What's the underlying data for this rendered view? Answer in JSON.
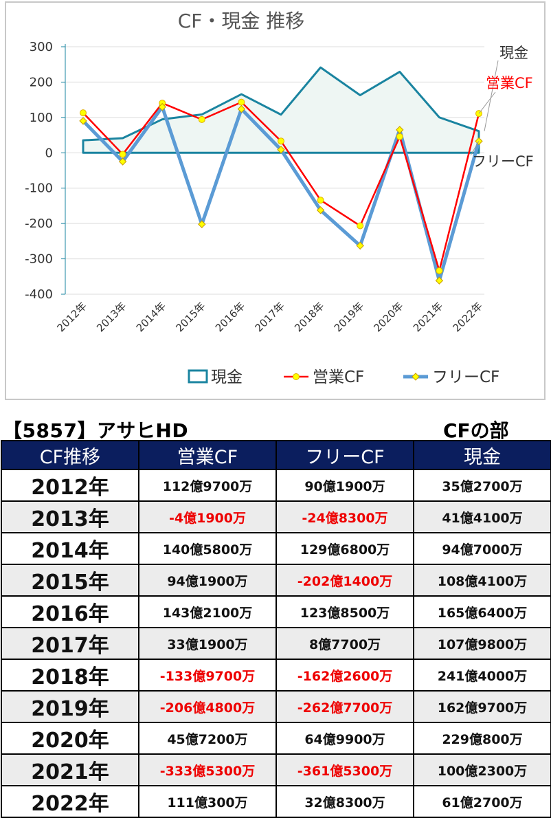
{
  "chart_data": {
    "type": "line",
    "title": "CF・現金 推移",
    "categories": [
      "2012年",
      "2013年",
      "2014年",
      "2015年",
      "2016年",
      "2017年",
      "2018年",
      "2019年",
      "2020年",
      "2021年",
      "2022年"
    ],
    "ylim": [
      -400,
      300
    ],
    "yticks": [
      300,
      200,
      100,
      0,
      -100,
      -200,
      -300,
      -400
    ],
    "grid": true,
    "legend_position": "bottom",
    "series": [
      {
        "name": "現金",
        "type": "area",
        "color": "#1a84a0",
        "values": [
          35.27,
          41.41,
          94.7,
          108.41,
          165.64,
          107.98,
          241.4,
          162.97,
          229.08,
          100.23,
          61.27
        ]
      },
      {
        "name": "営業CF",
        "type": "line",
        "color": "#ff0000",
        "marker": "circle",
        "marker_color": "#ffff00",
        "values": [
          112.97,
          -4.19,
          140.58,
          94.19,
          143.21,
          33.19,
          -133.97,
          -206.48,
          45.72,
          -333.53,
          111.03
        ]
      },
      {
        "name": "フリーCF",
        "type": "line",
        "color": "#5b9bd5",
        "marker": "diamond",
        "marker_color": "#ffff00",
        "values": [
          90.19,
          -24.83,
          129.68,
          -202.14,
          123.85,
          8.77,
          -162.26,
          -262.77,
          64.99,
          -361.53,
          32.83
        ]
      }
    ],
    "end_labels": [
      "現金",
      "営業CF",
      "フリーCF"
    ]
  },
  "company_title": "【5857】アサヒHD",
  "section_title": "CFの部",
  "table": {
    "headers": [
      "CF推移",
      "営業CF",
      "フリーCF",
      "現金"
    ],
    "rows": [
      [
        "2012年",
        "112億9700万",
        "90億1900万",
        "35億2700万"
      ],
      [
        "2013年",
        "-4億1900万",
        "-24億8300万",
        "41億4100万"
      ],
      [
        "2014年",
        "140億5800万",
        "129億6800万",
        "94億7000万"
      ],
      [
        "2015年",
        "94億1900万",
        "-202億1400万",
        "108億4100万"
      ],
      [
        "2016年",
        "143億2100万",
        "123億8500万",
        "165億6400万"
      ],
      [
        "2017年",
        "33億1900万",
        "8億7700万",
        "107億9800万"
      ],
      [
        "2018年",
        "-133億9700万",
        "-162億2600万",
        "241億4000万"
      ],
      [
        "2019年",
        "-206億4800万",
        "-262億7700万",
        "162億9700万"
      ],
      [
        "2020年",
        "45億7200万",
        "64億9900万",
        "229億800万"
      ],
      [
        "2021年",
        "-333億5300万",
        "-361億5300万",
        "100億2300万"
      ],
      [
        "2022年",
        "111億300万",
        "32億8300万",
        "61億2700万"
      ]
    ]
  }
}
